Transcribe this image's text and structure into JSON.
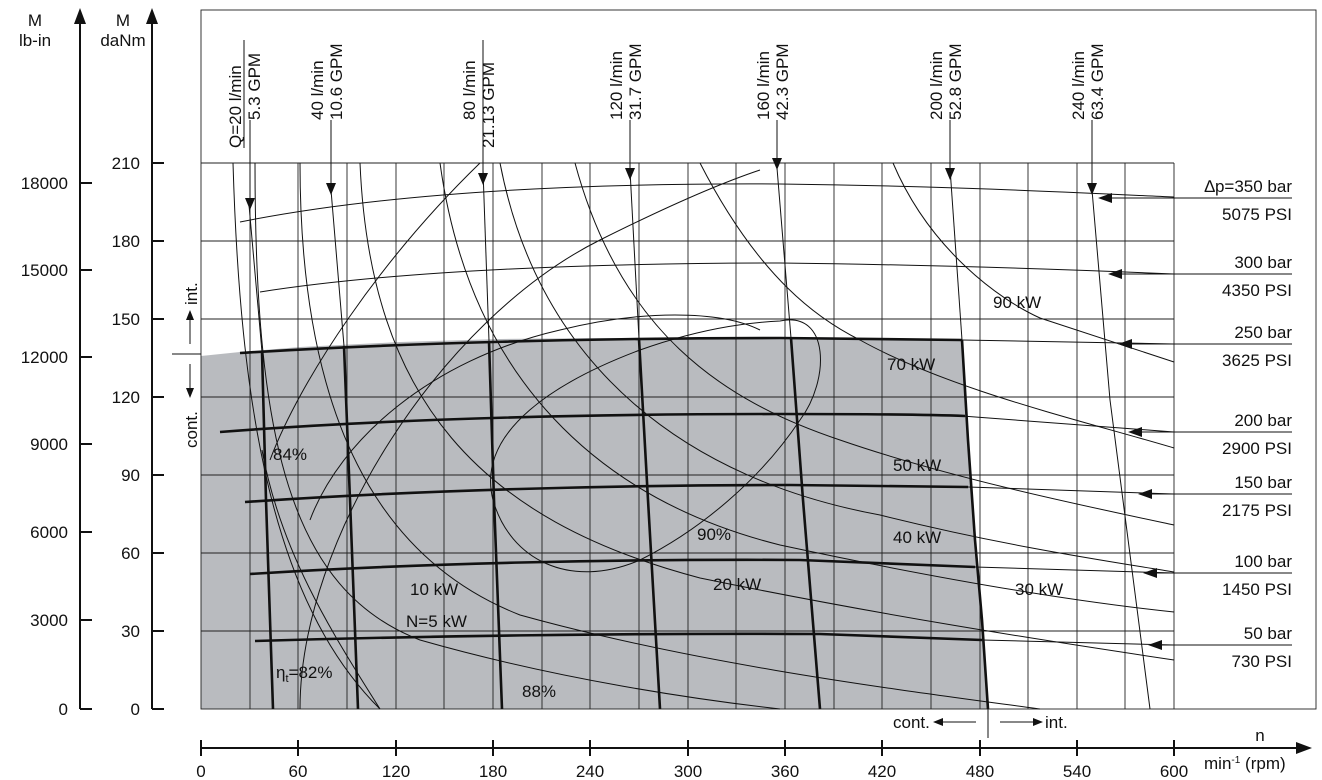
{
  "axes": {
    "left_outer_title": [
      "M",
      "lb-in"
    ],
    "left_inner_title": [
      "M",
      "daNm"
    ],
    "lbin_ticks": [
      "18000",
      "15000",
      "12000",
      "9000",
      "6000",
      "3000",
      "0"
    ],
    "danm_ticks": [
      "210",
      "180",
      "150",
      "120",
      "90",
      "60",
      "30",
      "0"
    ],
    "rpm_ticks": [
      "0",
      "60",
      "120",
      "180",
      "240",
      "300",
      "360",
      "420",
      "480",
      "540",
      "600"
    ],
    "x_title": "n",
    "x_unit_base": "min",
    "x_unit_sup": "-1",
    "x_unit_suffix": " (rpm)",
    "int_label": "int.",
    "cont_label": "cont."
  },
  "flows": [
    {
      "lmin": "Q=20 l/min",
      "gpm": "5.3 GPM"
    },
    {
      "lmin": "40 l/min",
      "gpm": "10.6 GPM"
    },
    {
      "lmin": "80 l/min",
      "gpm": "21.13 GPM"
    },
    {
      "lmin": "120 l/min",
      "gpm": "31.7 GPM"
    },
    {
      "lmin": "160 l/min",
      "gpm": "42.3 GPM"
    },
    {
      "lmin": "200 l/min",
      "gpm": "52.8 GPM"
    },
    {
      "lmin": "240 l/min",
      "gpm": "63.4 GPM"
    }
  ],
  "pressures": [
    {
      "bar": "∆p=350 bar",
      "psi": "5075 PSI"
    },
    {
      "bar": "300 bar",
      "psi": "4350 PSI"
    },
    {
      "bar": "250 bar",
      "psi": "3625 PSI"
    },
    {
      "bar": "200 bar",
      "psi": "2900 PSI"
    },
    {
      "bar": "150 bar",
      "psi": "2175 PSI"
    },
    {
      "bar": "100 bar",
      "psi": "1450 PSI"
    },
    {
      "bar": "50 bar",
      "psi": "730 PSI"
    }
  ],
  "power_labels": [
    "90 kW",
    "70 kW",
    "50 kW",
    "40 kW",
    "30 kW",
    "20 kW",
    "10 kW",
    "N=5 kW"
  ],
  "efficiency_labels": [
    "84%",
    "90%",
    "88%"
  ],
  "eta_label": {
    "symbol": "η",
    "sub": "t",
    "value": "=82%"
  },
  "colors": {
    "shaded_region": "#b9bbbf",
    "lines": "#111111",
    "background": "#ffffff"
  }
}
